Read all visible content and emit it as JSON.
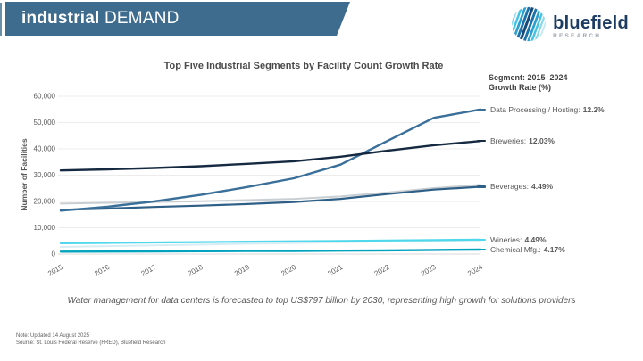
{
  "header": {
    "title_bold": "industrial",
    "title_regular": " DEMAND",
    "banner_color": "#3E6C8E"
  },
  "logo": {
    "wordmark": "bluefield",
    "subtitle": "RESEARCH",
    "wordmark_color": "#1C3C63",
    "subtitle_color": "#9CA5AE"
  },
  "chart_data": {
    "type": "line",
    "title": "Top Five Industrial Segments by Facility Count Growth Rate",
    "xlabel": "",
    "ylabel": "Number of Facilities",
    "x": [
      2015,
      2016,
      2017,
      2018,
      2019,
      2020,
      2021,
      2022,
      2023,
      2024
    ],
    "ylim": [
      0,
      60000
    ],
    "ytick_values": [
      0,
      10000,
      20000,
      30000,
      40000,
      50000,
      60000
    ],
    "ytick_labels": [
      "0",
      "10,000",
      "20,000",
      "30,000",
      "40,000",
      "50,000",
      "60,000"
    ],
    "grid": true,
    "legend_position": "right",
    "series": [
      {
        "name": "Data Processing / Hosting",
        "growth_rate": "12.2%",
        "color": "#3A6F99",
        "width": 2.4,
        "values": [
          16500,
          18000,
          20000,
          22500,
          25500,
          28800,
          34000,
          43000,
          51800,
          55000
        ]
      },
      {
        "name": "Breweries",
        "growth_rate": "12.03%",
        "color": "#152A40",
        "width": 2.4,
        "values": [
          31800,
          32200,
          32700,
          33400,
          34300,
          35300,
          37000,
          39300,
          41400,
          43000
        ]
      },
      {
        "name": "Beverages",
        "growth_rate": "4.49%",
        "color": "#2E5F86",
        "width": 2.2,
        "values": [
          16800,
          17300,
          17900,
          18400,
          19000,
          19800,
          21000,
          22800,
          24500,
          25600
        ]
      },
      {
        "name": "Wineries",
        "growth_rate": "4.49%",
        "color": "#4FD8EC",
        "width": 2.2,
        "values": [
          4100,
          4250,
          4400,
          4550,
          4700,
          4850,
          5000,
          5150,
          5300,
          5500
        ]
      },
      {
        "name": "Chemical Mfg.",
        "growth_rate": "4.17%",
        "color": "#00A2BE",
        "width": 2.4,
        "values": [
          900,
          950,
          1000,
          1100,
          1150,
          1200,
          1300,
          1400,
          1550,
          1700
        ]
      }
    ],
    "companion_lines": [
      {
        "name": "beverages-highlight",
        "color": "#C9CED3",
        "width": 2,
        "values": [
          19200,
          19500,
          19800,
          20100,
          20500,
          21000,
          21900,
          23400,
          25100,
          26300
        ]
      },
      {
        "name": "wineries-highlight",
        "color": "#D8EDF3",
        "width": 2,
        "values": [
          2700,
          3000,
          3300,
          3600,
          3900,
          4200,
          4500,
          4800,
          5000,
          5200
        ]
      }
    ]
  },
  "legend": {
    "header_line1": "Segment: 2015–2024",
    "header_line2": "Growth Rate (%)"
  },
  "footnote": "Water management for data centers is forecasted to top US$797 billion by 2030, representing high growth for solutions providers",
  "notes": {
    "note": "Note: Updated 14 August 2025",
    "source": "Source: St. Louis Federal Reserve (FRED), Bluefield Research"
  }
}
